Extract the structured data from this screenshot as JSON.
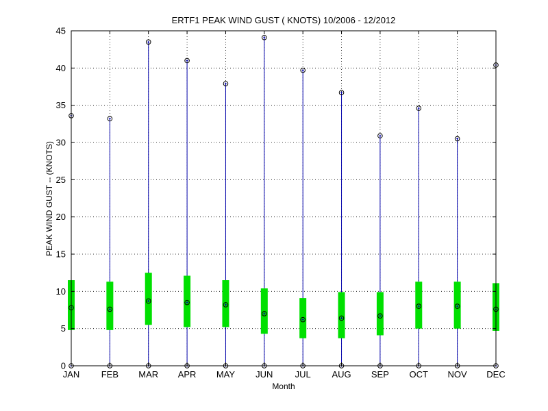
{
  "chart_data": {
    "type": "boxplot",
    "title": "ERTF1  PEAK WIND GUST ( KNOTS) 10/2006 - 12/2012",
    "xlabel": "Month",
    "ylabel": "PEAK WIND GUST -- (KNOTS)",
    "ylim": [
      0,
      45
    ],
    "yticks": [
      0,
      5,
      10,
      15,
      20,
      25,
      30,
      35,
      40,
      45
    ],
    "grid": true,
    "categories": [
      "JAN",
      "FEB",
      "MAR",
      "APR",
      "MAY",
      "JUN",
      "JUL",
      "AUG",
      "SEP",
      "OCT",
      "NOV",
      "DEC"
    ],
    "min": [
      0,
      0,
      0,
      0,
      0,
      0,
      0,
      0,
      0,
      0,
      0,
      0
    ],
    "max": [
      33.6,
      33.2,
      43.5,
      41.0,
      37.9,
      44.1,
      39.7,
      36.7,
      30.9,
      34.6,
      30.5,
      40.4
    ],
    "mean": [
      7.8,
      7.6,
      8.7,
      8.5,
      8.2,
      7.0,
      6.2,
      6.4,
      6.7,
      8.0,
      8.0,
      7.6
    ],
    "q_low": [
      4.8,
      4.8,
      5.5,
      5.2,
      5.2,
      4.3,
      3.7,
      3.7,
      4.1,
      5.0,
      5.0,
      4.7
    ],
    "q_high": [
      11.5,
      11.3,
      12.5,
      12.1,
      11.5,
      10.4,
      9.1,
      9.9,
      9.9,
      11.3,
      11.3,
      11.1
    ],
    "colors": {
      "whisker": "#0000aa",
      "box": "#00e000",
      "marker": "#000000",
      "grid": "#000000"
    }
  }
}
